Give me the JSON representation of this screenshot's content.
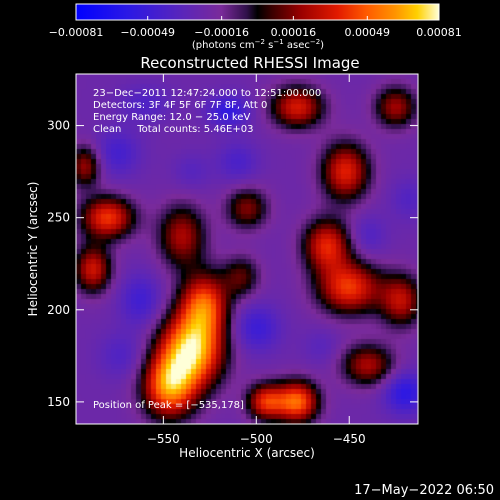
{
  "chart_data": {
    "type": "heatmap",
    "title": "Reconstructed RHESSI Image",
    "xlabel": "Heliocentric X (arcsec)",
    "ylabel": "Heliocentric Y (arcsec)",
    "xlim": [
      -597,
      -413
    ],
    "ylim": [
      138,
      328
    ],
    "x_ticks": [
      {
        "value": -550,
        "label": "−550"
      },
      {
        "value": -500,
        "label": "−500"
      },
      {
        "value": -450,
        "label": "−450"
      }
    ],
    "y_ticks": [
      {
        "value": 150,
        "label": "150"
      },
      {
        "value": 200,
        "label": "200"
      },
      {
        "value": 250,
        "label": "250"
      },
      {
        "value": 300,
        "label": "300"
      }
    ],
    "colorbar": {
      "range": [
        -0.00081,
        0.00081
      ],
      "ticks": [
        {
          "value": -0.00081,
          "label": "−0.00081"
        },
        {
          "value": -0.00049,
          "label": "−0.00049"
        },
        {
          "value": -0.00016,
          "label": "−0.00016"
        },
        {
          "value": 0.00016,
          "label": "0.00016"
        },
        {
          "value": 0.00049,
          "label": "0.00049"
        },
        {
          "value": 0.00081,
          "label": "0.00081"
        }
      ],
      "unit_main": "(photons cm",
      "unit_exp1": "−2",
      "unit_mid": " s",
      "unit_exp2": "−1",
      "unit_mid2": " asec",
      "unit_exp3": "−2",
      "unit_end": ")"
    },
    "annotations": [
      "23−Dec−2011 12:47:24.000 to 12:51:00.000",
      "Detectors: 3F 4F 5F 6F 7F 8F, Att 0",
      "Energy Range: 12.0 − 25.0 keV",
      "Clean     Total counts: 5.46E+03"
    ],
    "peak_label": "Position of Peak = [−535,178]",
    "peak": {
      "x": -535,
      "y": 178
    },
    "blobs": [
      {
        "x": -535,
        "y": 178,
        "sx": 12,
        "sy": 14,
        "v": 0.0008
      },
      {
        "x": -547,
        "y": 158,
        "sx": 10,
        "sy": 12,
        "v": 0.00062
      },
      {
        "x": -528,
        "y": 203,
        "sx": 9,
        "sy": 12,
        "v": 0.00052
      },
      {
        "x": -540,
        "y": 240,
        "sx": 9,
        "sy": 12,
        "v": 0.00032
      },
      {
        "x": -580,
        "y": 250,
        "sx": 10,
        "sy": 8,
        "v": 0.0005
      },
      {
        "x": -588,
        "y": 222,
        "sx": 7,
        "sy": 9,
        "v": 0.0004
      },
      {
        "x": -592,
        "y": 278,
        "sx": 6,
        "sy": 8,
        "v": 0.0003
      },
      {
        "x": -495,
        "y": 150,
        "sx": 7,
        "sy": 7,
        "v": 0.00045
      },
      {
        "x": -478,
        "y": 150,
        "sx": 8,
        "sy": 8,
        "v": 0.0006
      },
      {
        "x": -450,
        "y": 212,
        "sx": 12,
        "sy": 10,
        "v": 0.0005
      },
      {
        "x": -462,
        "y": 235,
        "sx": 9,
        "sy": 10,
        "v": 0.00045
      },
      {
        "x": -452,
        "y": 275,
        "sx": 9,
        "sy": 11,
        "v": 0.00045
      },
      {
        "x": -478,
        "y": 310,
        "sx": 10,
        "sy": 8,
        "v": 0.00042
      },
      {
        "x": -422,
        "y": 205,
        "sx": 8,
        "sy": 10,
        "v": 0.00035
      },
      {
        "x": -440,
        "y": 170,
        "sx": 10,
        "sy": 8,
        "v": 0.00032
      },
      {
        "x": -425,
        "y": 310,
        "sx": 8,
        "sy": 8,
        "v": 0.0003
      },
      {
        "x": -505,
        "y": 255,
        "sx": 8,
        "sy": 8,
        "v": 0.00025
      },
      {
        "x": -508,
        "y": 218,
        "sx": 7,
        "sy": 8,
        "v": 0.00018
      },
      {
        "x": -515,
        "y": 308,
        "sx": 8,
        "sy": 6,
        "v": -0.00045
      },
      {
        "x": -510,
        "y": 280,
        "sx": 8,
        "sy": 8,
        "v": -0.00032
      },
      {
        "x": -500,
        "y": 190,
        "sx": 9,
        "sy": 9,
        "v": -0.0004
      },
      {
        "x": -562,
        "y": 205,
        "sx": 8,
        "sy": 10,
        "v": -0.00038
      },
      {
        "x": -575,
        "y": 285,
        "sx": 9,
        "sy": 9,
        "v": -0.00035
      },
      {
        "x": -572,
        "y": 175,
        "sx": 9,
        "sy": 9,
        "v": -0.0003
      },
      {
        "x": -420,
        "y": 155,
        "sx": 8,
        "sy": 8,
        "v": -0.00048
      },
      {
        "x": -440,
        "y": 240,
        "sx": 7,
        "sy": 8,
        "v": -0.0003
      },
      {
        "x": -560,
        "y": 312,
        "sx": 10,
        "sy": 7,
        "v": -0.0003
      },
      {
        "x": -465,
        "y": 180,
        "sx": 7,
        "sy": 7,
        "v": -0.00025
      },
      {
        "x": -418,
        "y": 260,
        "sx": 7,
        "sy": 8,
        "v": -0.00028
      },
      {
        "x": -535,
        "y": 275,
        "sx": 7,
        "sy": 7,
        "v": -0.00026
      }
    ],
    "background": -0.00024
  },
  "timestamp": "17−May−2022 06:50"
}
